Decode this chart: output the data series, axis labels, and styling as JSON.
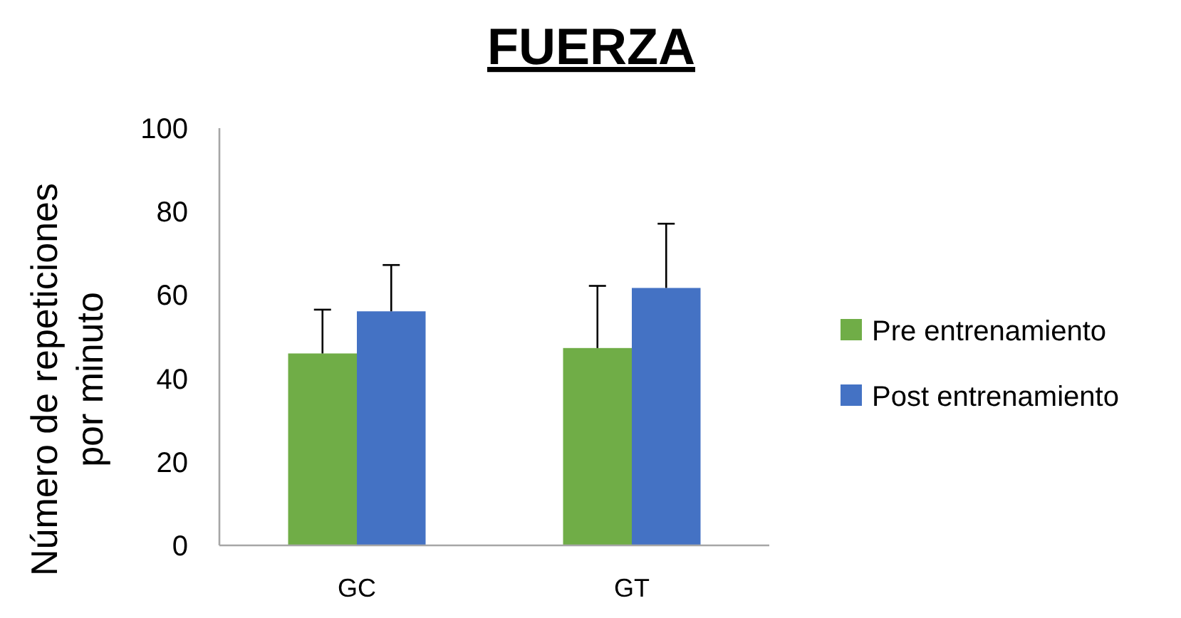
{
  "chart_data": {
    "type": "bar",
    "title": "FUERZA",
    "ylabel": "Número de repeticiones por minuto",
    "categories": [
      "GC",
      "GT"
    ],
    "series": [
      {
        "name": "Pre entrenamiento",
        "color": "#70ad47",
        "values": [
          46,
          47.3
        ],
        "errors": [
          [
            46,
            56.5
          ],
          [
            47.3,
            62.2
          ]
        ]
      },
      {
        "name": "Post entrenamiento",
        "color": "#4472c4",
        "values": [
          56.1,
          61.7
        ],
        "errors": [
          [
            56.1,
            67.2
          ],
          [
            61.7,
            77.1
          ]
        ]
      }
    ],
    "ylim": [
      0,
      100
    ],
    "yticks": [
      0,
      20,
      40,
      60,
      80,
      100
    ],
    "grid": false,
    "legend": "right"
  }
}
